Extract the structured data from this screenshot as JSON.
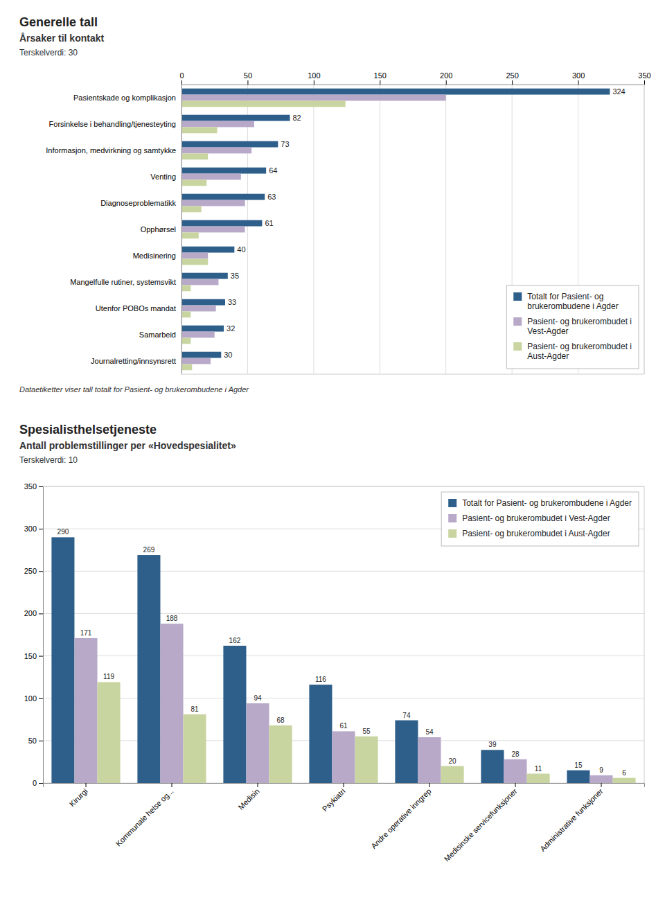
{
  "chart_data": [
    {
      "type": "bar",
      "orientation": "horizontal",
      "title": "Generelle tall",
      "subtitle": "Årsaker til kontakt",
      "annotations": [
        "Terskelverdi: 30",
        "Dataetiketter viser tall totalt for Pasient- og brukerombudene i Agder"
      ],
      "categories": [
        "Journalretting/innsynsrett",
        "Samarbeid",
        "Utenfor POBOs mandat",
        "Mangelfulle rutiner, systemsvikt",
        "Medisinering",
        "Opphørsel",
        "Diagnoseproblematikk",
        "Venting",
        "Informasjon, medvirkning og samtykke",
        "Forsinkelse i behandling/tjenesteyting",
        "Pasientskade og komplikasjon"
      ],
      "series": [
        {
          "name": "Totalt for Pasient- og\nbrukerombudene i Agder",
          "color": "#2E5F8A",
          "data_labels": true,
          "values": [
            30,
            32,
            33,
            35,
            40,
            61,
            63,
            64,
            73,
            82,
            324
          ]
        },
        {
          "name": "Pasient- og brukerombudet i\nVest-Agder",
          "color": "#B8A9C9",
          "data_labels": false,
          "values": [
            22,
            25,
            26,
            28,
            20,
            48,
            48,
            45,
            53,
            55,
            200
          ]
        },
        {
          "name": "Pasient- og brukerombudet i\nAust-Agder",
          "color": "#C8D5A0",
          "data_labels": false,
          "values": [
            8,
            7,
            7,
            7,
            20,
            13,
            15,
            19,
            20,
            27,
            124
          ]
        }
      ],
      "xlim": [
        0,
        350
      ],
      "xticks": [
        0,
        50,
        100,
        150,
        200,
        250,
        300,
        350
      ],
      "grid": true,
      "legend": "lower right"
    },
    {
      "type": "bar",
      "title": "Spesialisthelsetjeneste",
      "subtitle": "Antall problemstillinger per «Hovedspesialitet»",
      "annotations": [
        "Terskelverdi: 10"
      ],
      "categories": [
        "Kirurgi",
        "Kommunale helse og...",
        "Medisin",
        "Psykiatri",
        "Andre operative inngrep",
        "Medisinske servicefunksjoner",
        "Administrative funksjoner"
      ],
      "series": [
        {
          "name": "Totalt for Pasient- og brukerombudene i Agder",
          "color": "#2E5F8A",
          "values": [
            290,
            269,
            162,
            116,
            74,
            39,
            15
          ]
        },
        {
          "name": "Pasient- og brukerombudet i Vest-Agder",
          "color": "#B8A9C9",
          "values": [
            171,
            188,
            94,
            61,
            54,
            28,
            9
          ]
        },
        {
          "name": "Pasient- og brukerombudet i Aust-Agder",
          "color": "#C8D5A0",
          "values": [
            119,
            81,
            68,
            55,
            20,
            11,
            6
          ]
        }
      ],
      "ylim": [
        0,
        350
      ],
      "yticks": [
        0,
        50,
        100,
        150,
        200,
        250,
        300,
        350
      ],
      "grid": true,
      "data_labels": true,
      "legend": "upper right"
    }
  ]
}
